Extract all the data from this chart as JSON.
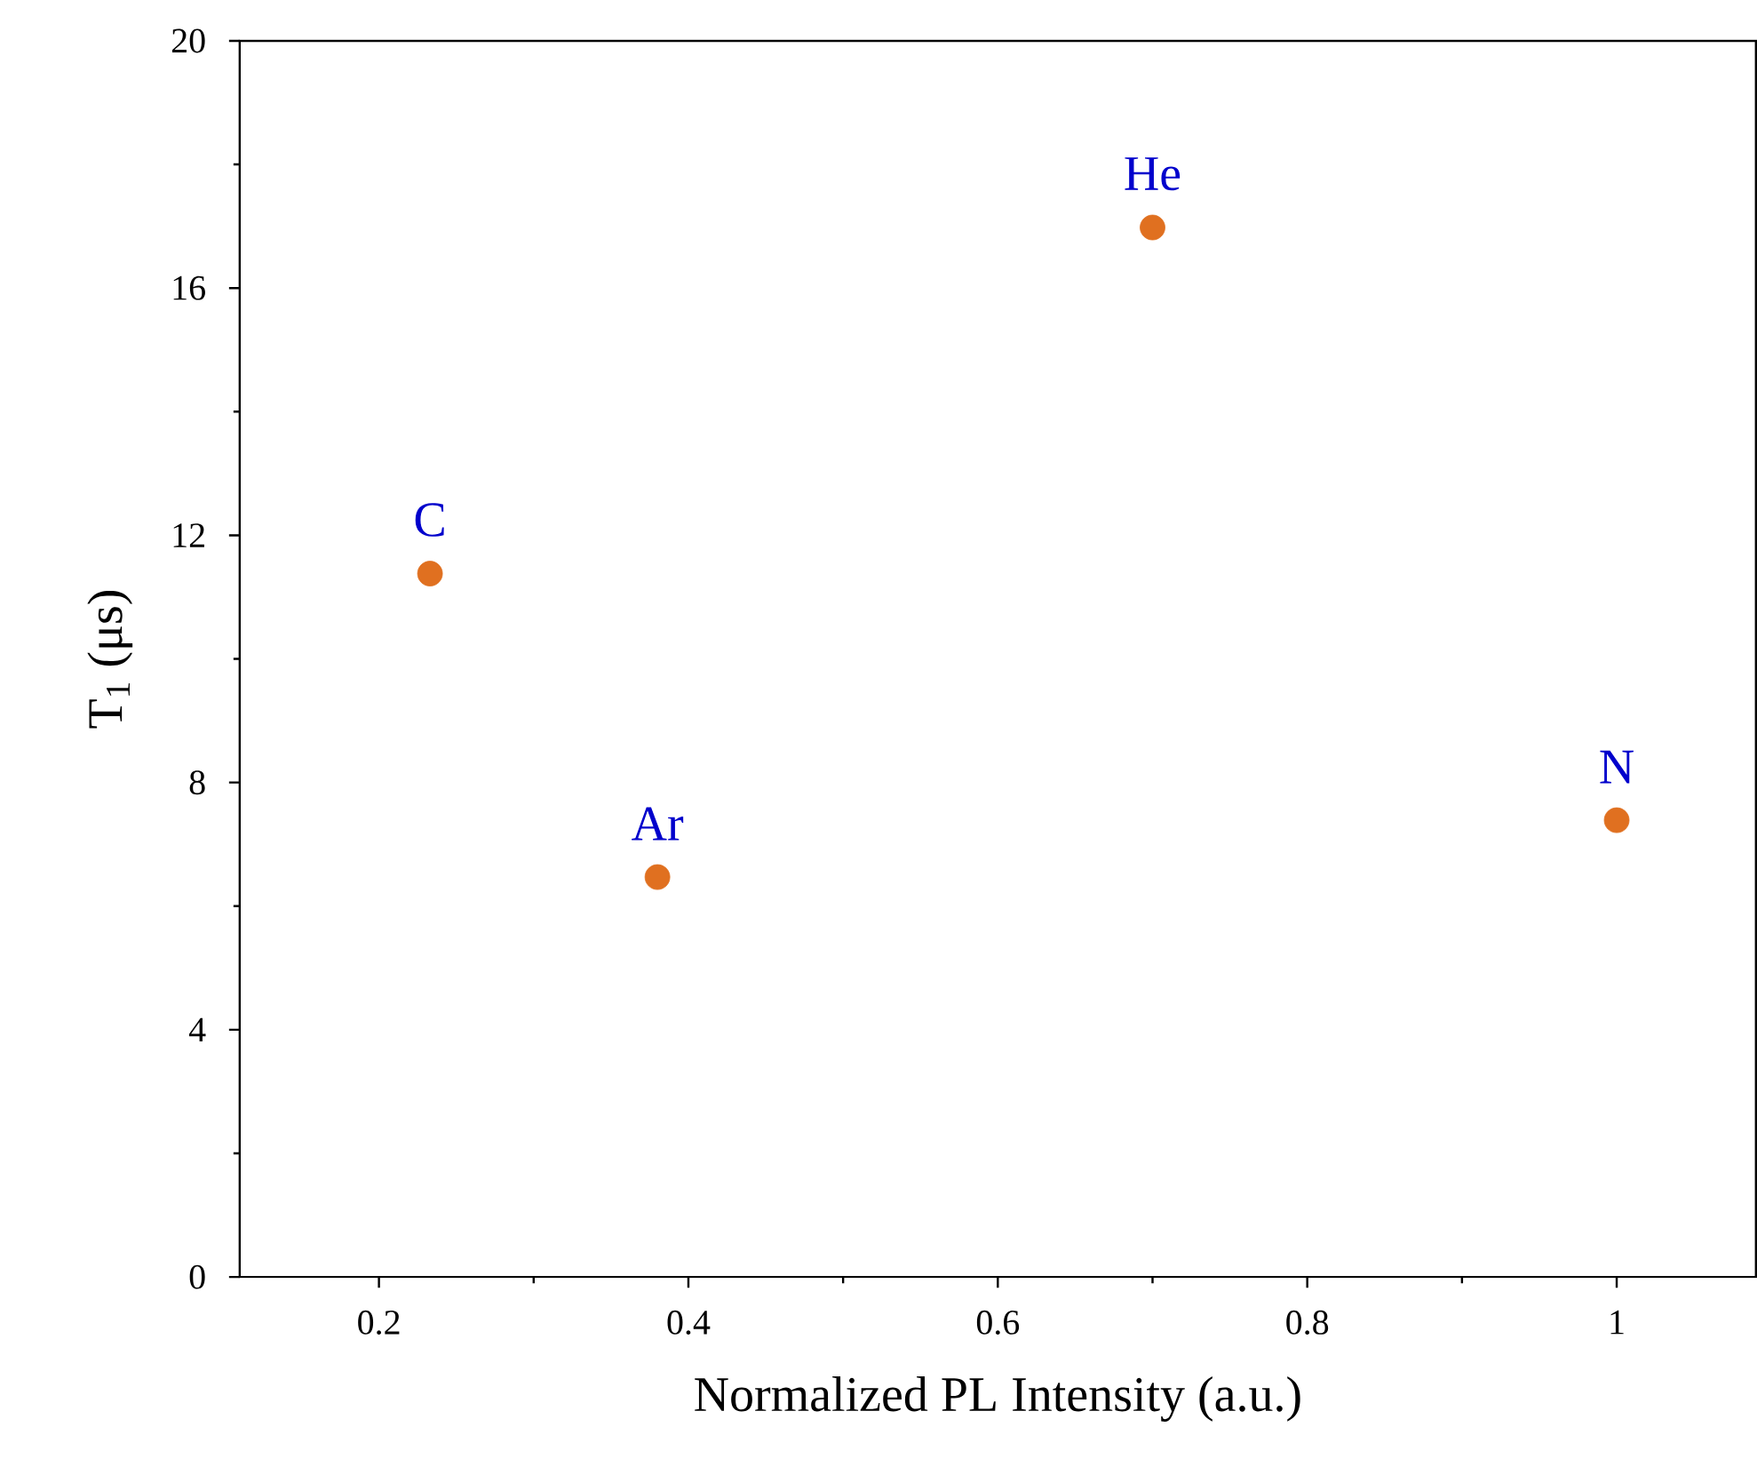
{
  "chart_data": {
    "type": "scatter",
    "xlabel": "Normalized PL Intensity (a.u.)",
    "ylabel": "T$_{1}$ (μs)",
    "x": [
      0.233,
      0.38,
      0.7,
      1.0
    ],
    "series": [
      {
        "color": "#e07020",
        "values": [
          11.38,
          6.47,
          16.98,
          7.39
        ]
      }
    ],
    "xlim": [
      0.11,
      1.09
    ],
    "xticks": [
      0.2,
      0.4,
      0.6,
      0.8,
      1
    ],
    "ylim": [
      0,
      20
    ],
    "yticks": [
      0,
      4,
      8,
      12,
      16,
      20
    ],
    "annotations": [
      {
        "text": "C",
        "x": 0.233,
        "y": 11.38
      },
      {
        "text": "Ar",
        "x": 0.38,
        "y": 6.47
      },
      {
        "text": "He",
        "x": 0.7,
        "y": 16.98
      },
      {
        "text": "N",
        "x": 1.0,
        "y": 7.39
      }
    ],
    "grid": false
  }
}
